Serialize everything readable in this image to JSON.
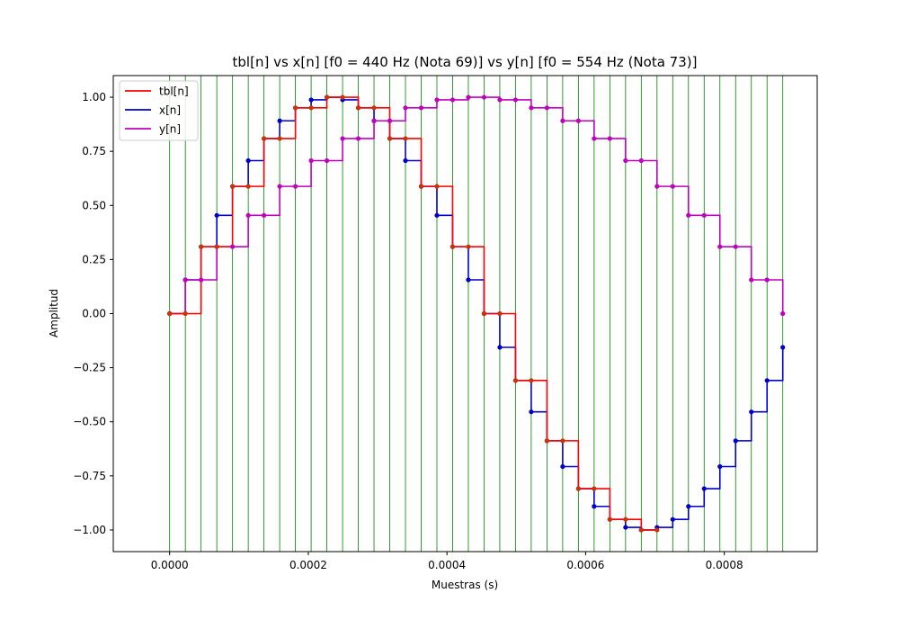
{
  "chart_data": {
    "type": "line",
    "title": "tbl[n] vs x[n] [f0 = 440 Hz (Nota 69)] vs y[n] [f0 = 554 Hz (Nota 73)]",
    "xlabel": "Muestras (s)",
    "ylabel": "Amplitud",
    "xlim": [
      -8.13e-05,
      0.000934
    ],
    "ylim": [
      -1.1,
      1.1
    ],
    "xticks": [
      0,
      0.0002,
      0.0004,
      0.0006,
      0.0008
    ],
    "xtick_labels": [
      "0.0000",
      "0.0002",
      "0.0004",
      "0.0006",
      "0.0008"
    ],
    "yticks": [
      -1.0,
      -0.75,
      -0.5,
      -0.25,
      0.0,
      0.25,
      0.5,
      0.75,
      1.0
    ],
    "ytick_labels": [
      "−1.00",
      "−0.75",
      "−0.50",
      "−0.25",
      "0.00",
      "0.25",
      "0.50",
      "0.75",
      "1.00"
    ],
    "grid": "vertical lines at each sample",
    "legend_position": "top-left",
    "sample_period": 2.26757e-05,
    "series": [
      {
        "name": "tbl[n]",
        "color": "#ff0000",
        "marker_color": "#cc3300",
        "values": [
          0.0,
          0.0,
          0.309,
          0.309,
          0.588,
          0.588,
          0.809,
          0.809,
          0.951,
          0.951,
          1.0,
          1.0,
          0.951,
          0.951,
          0.809,
          0.809,
          0.588,
          0.588,
          0.309,
          0.309,
          0.0,
          0.0,
          -0.309,
          -0.309,
          -0.588,
          -0.588,
          -0.809,
          -0.809,
          -0.951,
          -0.951,
          -1.0,
          -1.0
        ]
      },
      {
        "name": "x[n]",
        "color": "#0000cc",
        "marker_color": "#0000cc",
        "values": [
          0.0,
          0.156,
          0.309,
          0.454,
          0.588,
          0.707,
          0.809,
          0.891,
          0.951,
          0.988,
          1.0,
          0.988,
          0.951,
          0.891,
          0.809,
          0.707,
          0.588,
          0.454,
          0.309,
          0.156,
          0.0,
          -0.156,
          -0.309,
          -0.454,
          -0.588,
          -0.707,
          -0.809,
          -0.891,
          -0.951,
          -0.988,
          -1.0,
          -0.988,
          -0.951,
          -0.891,
          -0.809,
          -0.707,
          -0.588,
          -0.454,
          -0.309,
          -0.156
        ]
      },
      {
        "name": "y[n]",
        "color": "#bf00bf",
        "marker_color": "#bf00bf",
        "values": [
          0.0,
          0.156,
          0.156,
          0.309,
          0.309,
          0.454,
          0.454,
          0.588,
          0.588,
          0.707,
          0.707,
          0.809,
          0.809,
          0.891,
          0.891,
          0.951,
          0.951,
          0.988,
          0.988,
          1.0,
          1.0,
          0.988,
          0.988,
          0.951,
          0.951,
          0.891,
          0.891,
          0.809,
          0.809,
          0.707,
          0.707,
          0.588,
          0.588,
          0.454,
          0.454,
          0.309,
          0.309,
          0.156,
          0.156,
          0.0
        ]
      }
    ]
  }
}
